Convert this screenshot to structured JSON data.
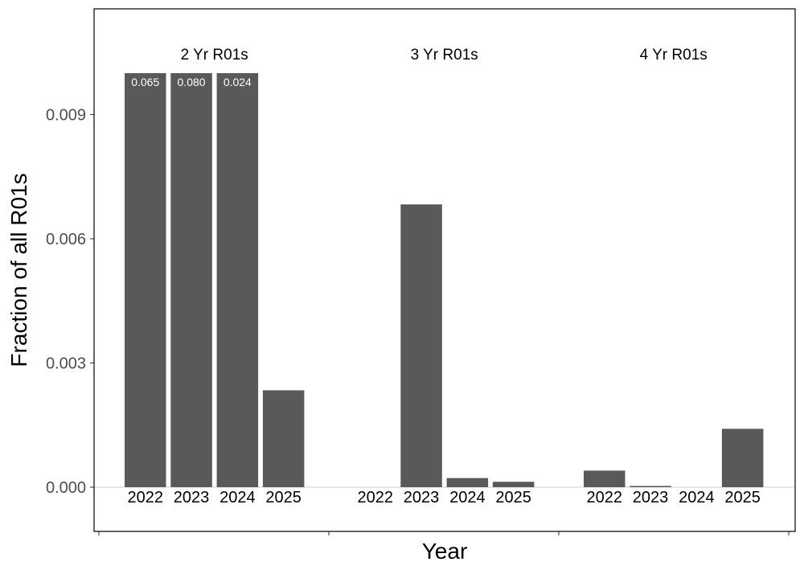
{
  "chart_data": {
    "type": "bar",
    "xlabel": "Year",
    "ylabel": "Fraction of all R01s",
    "ylim": [
      -0.00105,
      0.0115
    ],
    "yticks": [
      "0.000",
      "0.003",
      "0.006",
      "0.009"
    ],
    "yticks_values": [
      0,
      0.003,
      0.006,
      0.009
    ],
    "bar_color": "#595959",
    "cap": 0.01,
    "groups": [
      {
        "label": "2 Yr R01s",
        "categories": [
          "2022",
          "2023",
          "2024",
          "2025"
        ],
        "values": [
          0.065,
          0.08,
          0.024,
          0.00234
        ],
        "value_labels": [
          "0.065",
          "0.080",
          "0.024",
          ""
        ]
      },
      {
        "label": "3 Yr R01s",
        "categories": [
          "2022",
          "2023",
          "2024",
          "2025"
        ],
        "values": [
          0,
          0.00683,
          0.00022,
          0.00013
        ],
        "value_labels": [
          "",
          "",
          "",
          ""
        ]
      },
      {
        "label": "4 Yr R01s",
        "categories": [
          "2022",
          "2023",
          "2024",
          "2025"
        ],
        "values": [
          0.0004,
          3e-05,
          0,
          0.00141
        ],
        "value_labels": [
          "",
          "",
          "",
          ""
        ]
      }
    ]
  }
}
